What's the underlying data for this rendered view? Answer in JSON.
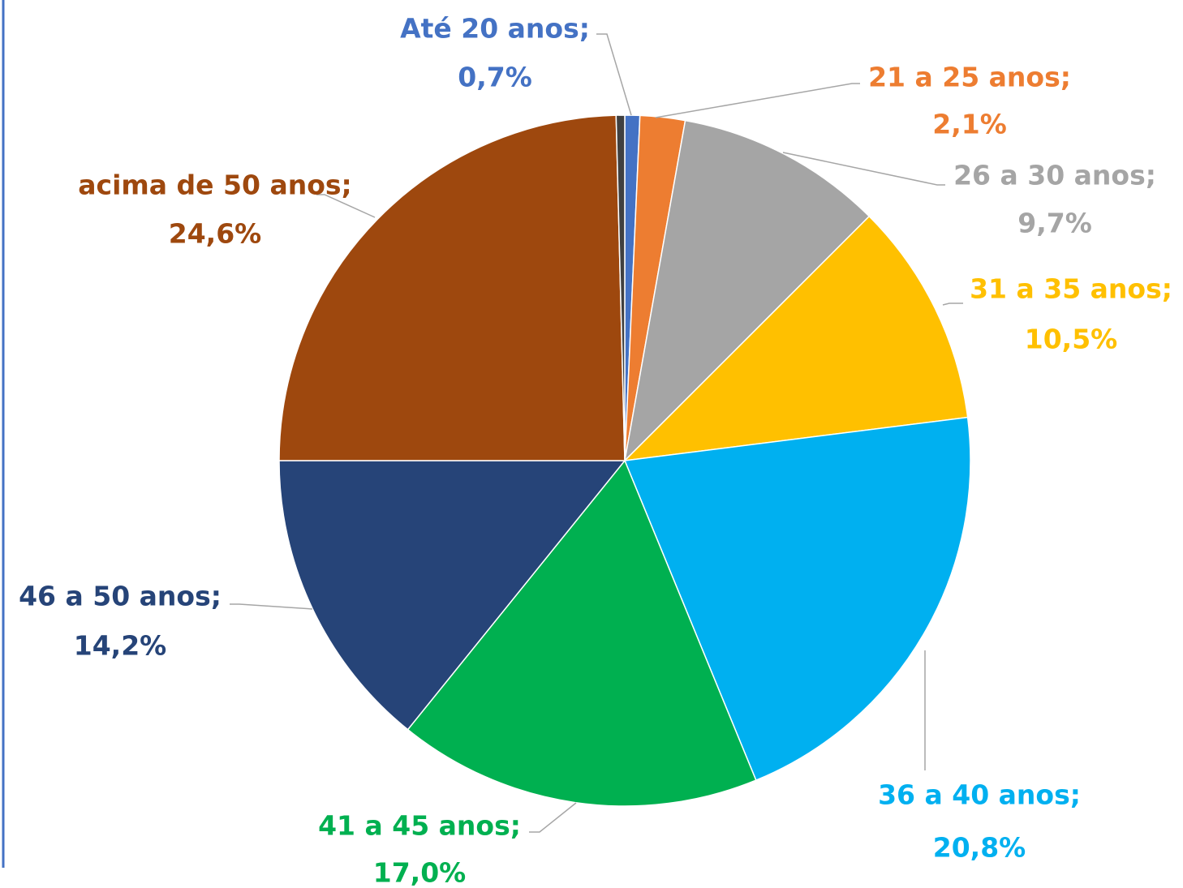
{
  "chart_data": {
    "type": "pie",
    "categories": [
      "Até 20 anos;",
      "21 a 25 anos;",
      "26 a 30 anos;",
      "31 a 35 anos;",
      "36 a 40 anos;",
      "41 a 45 anos;",
      "46 a 50 anos;",
      "acima de 50 anos;",
      null
    ],
    "values": [
      0.7,
      2.1,
      9.7,
      10.5,
      20.8,
      17.0,
      14.2,
      24.6,
      0.4
    ],
    "value_labels": [
      "0,7%",
      "2,1%",
      "9,7%",
      "10,5%",
      "20,8%",
      "17,0%",
      "14,2%",
      "24,6%",
      null
    ],
    "colors": [
      "#4472c4",
      "#ed7d31",
      "#a5a5a5",
      "#ffc000",
      "#00b0f0",
      "#00b050",
      "#264478",
      "#9e480e",
      "#404040"
    ]
  }
}
